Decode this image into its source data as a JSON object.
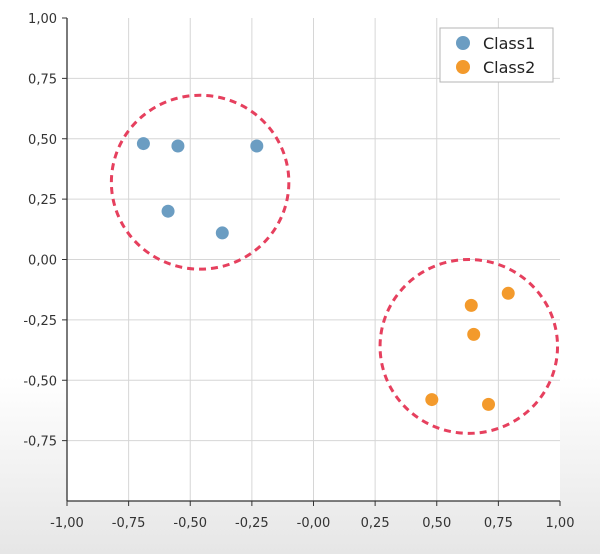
{
  "chart_data": {
    "type": "scatter",
    "title": "",
    "xlabel": "",
    "ylabel": "",
    "xlim": [
      -1.0,
      1.0
    ],
    "ylim": [
      -1.0,
      1.0
    ],
    "x_ticks": [
      -1.0,
      -0.75,
      -0.5,
      -0.25,
      0.0,
      0.25,
      0.5,
      0.75,
      1.0
    ],
    "x_tick_labels": [
      "-1,00",
      "-0,75",
      "-0,50",
      "-0,25",
      "-0,00",
      "0,25",
      "0,50",
      "0,75",
      "1,00"
    ],
    "y_ticks": [
      1.0,
      0.75,
      0.5,
      0.25,
      0.0,
      -0.25,
      -0.5,
      -0.75
    ],
    "y_tick_labels": [
      "1,00",
      "0,75",
      "0,50",
      "0,25",
      "0,00",
      "-0,25",
      "-0,50",
      "-0,75"
    ],
    "grid": true,
    "legend_position": "top-right",
    "series": [
      {
        "name": "Class1",
        "color": "#6b9dc2",
        "points": [
          [
            -0.69,
            0.48
          ],
          [
            -0.55,
            0.47
          ],
          [
            -0.23,
            0.47
          ],
          [
            -0.59,
            0.2
          ],
          [
            -0.37,
            0.11
          ]
        ]
      },
      {
        "name": "Class2",
        "color": "#f39a2c",
        "points": [
          [
            0.64,
            -0.19
          ],
          [
            0.79,
            -0.14
          ],
          [
            0.65,
            -0.31
          ],
          [
            0.48,
            -0.58
          ],
          [
            0.71,
            -0.6
          ]
        ]
      }
    ],
    "annotations": [
      {
        "shape": "dashed-circle",
        "color": "#e6405e",
        "cx": -0.46,
        "cy": 0.32,
        "r": 0.36
      },
      {
        "shape": "dashed-circle",
        "color": "#e6405e",
        "cx": 0.63,
        "cy": -0.36,
        "r": 0.36
      }
    ]
  }
}
